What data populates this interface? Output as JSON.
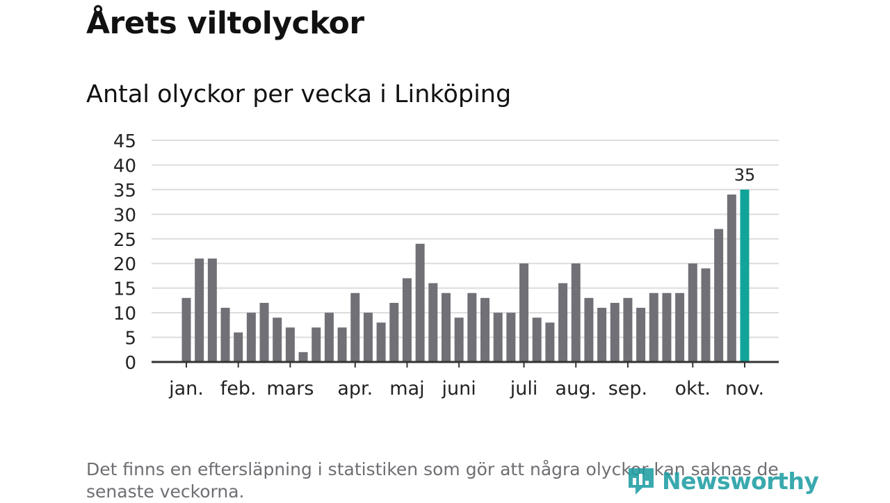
{
  "header": {
    "title": "Årets viltolyckor",
    "subtitle": "Antal olyckor per vecka i Linköping"
  },
  "chart_data": {
    "type": "bar",
    "title": "Antal olyckor per vecka i Linköping",
    "xlabel": "",
    "ylabel": "",
    "ylim": [
      0,
      45
    ],
    "yticks": [
      0,
      5,
      10,
      15,
      20,
      25,
      30,
      35,
      40,
      45
    ],
    "grid": true,
    "legend": "none",
    "values": [
      13,
      21,
      21,
      11,
      6,
      10,
      12,
      9,
      7,
      2,
      7,
      10,
      7,
      14,
      10,
      8,
      12,
      17,
      24,
      16,
      14,
      9,
      14,
      13,
      10,
      10,
      20,
      9,
      8,
      16,
      20,
      13,
      11,
      12,
      13,
      11,
      14,
      14,
      14,
      20,
      19,
      27,
      34,
      35
    ],
    "month_labels": [
      {
        "label": "jan.",
        "week_index": 0
      },
      {
        "label": "feb.",
        "week_index": 4
      },
      {
        "label": "mars",
        "week_index": 8
      },
      {
        "label": "apr.",
        "week_index": 13
      },
      {
        "label": "maj",
        "week_index": 17
      },
      {
        "label": "juni",
        "week_index": 21
      },
      {
        "label": "juli",
        "week_index": 26
      },
      {
        "label": "aug.",
        "week_index": 30
      },
      {
        "label": "sep.",
        "week_index": 34
      },
      {
        "label": "okt.",
        "week_index": 39
      },
      {
        "label": "nov.",
        "week_index": 43
      }
    ],
    "highlight": {
      "index": 43,
      "label": "35"
    },
    "colors": {
      "bar": "#717077",
      "highlight": "#12a49a",
      "grid": "#dcdcdc",
      "axis": "#333333",
      "text": "#222222"
    }
  },
  "footer": {
    "note": "Det finns en eftersläpning i statistiken som gör att några olyckor kan saknas de senaste veckorna.",
    "brand": "Newsworthy",
    "brand_color": "#1e9ea3"
  }
}
